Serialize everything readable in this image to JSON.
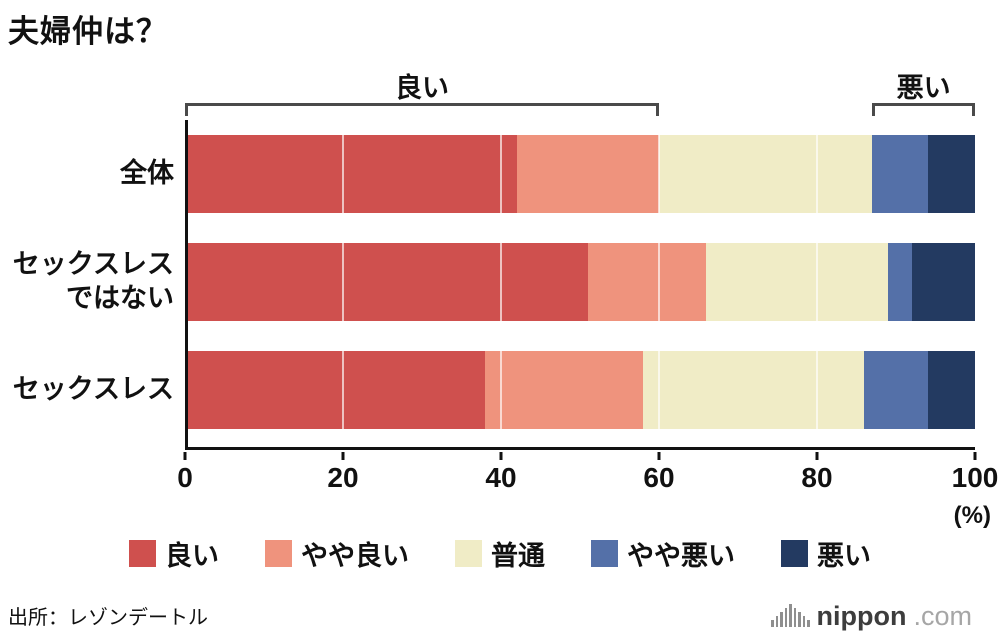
{
  "source": "出所：レゾンデートル",
  "logo": {
    "brand": "nippon",
    "suffix": ".com"
  },
  "chart_data": {
    "type": "bar",
    "subtype": "horizontal-stacked",
    "title": "夫婦仲は？",
    "categories": [
      "全体",
      "セックスレス\nではない",
      "セックスレス"
    ],
    "series": [
      {
        "name": "良い",
        "color": "#cf504e",
        "values": [
          42,
          51,
          38
        ]
      },
      {
        "name": "やや良い",
        "color": "#ef937d",
        "values": [
          18,
          15,
          20
        ]
      },
      {
        "name": "普通",
        "color": "#f0ecc6",
        "values": [
          27,
          23,
          28
        ]
      },
      {
        "name": "やや悪い",
        "color": "#5470a8",
        "values": [
          7,
          3,
          8
        ]
      },
      {
        "name": "悪い",
        "color": "#233a61",
        "values": [
          6,
          8,
          6
        ]
      }
    ],
    "x_ticks": [
      0,
      20,
      40,
      60,
      80,
      100
    ],
    "xlim": [
      0,
      100
    ],
    "unit_label": "(%)",
    "annotations": [
      {
        "label": "良い",
        "from": 0,
        "to": 60
      },
      {
        "label": "悪い",
        "from": 87,
        "to": 100
      }
    ],
    "legend": [
      "良い",
      "やや良い",
      "普通",
      "やや悪い",
      "悪い"
    ],
    "legend_position": "bottom",
    "grid": "white-vertical-lines"
  }
}
